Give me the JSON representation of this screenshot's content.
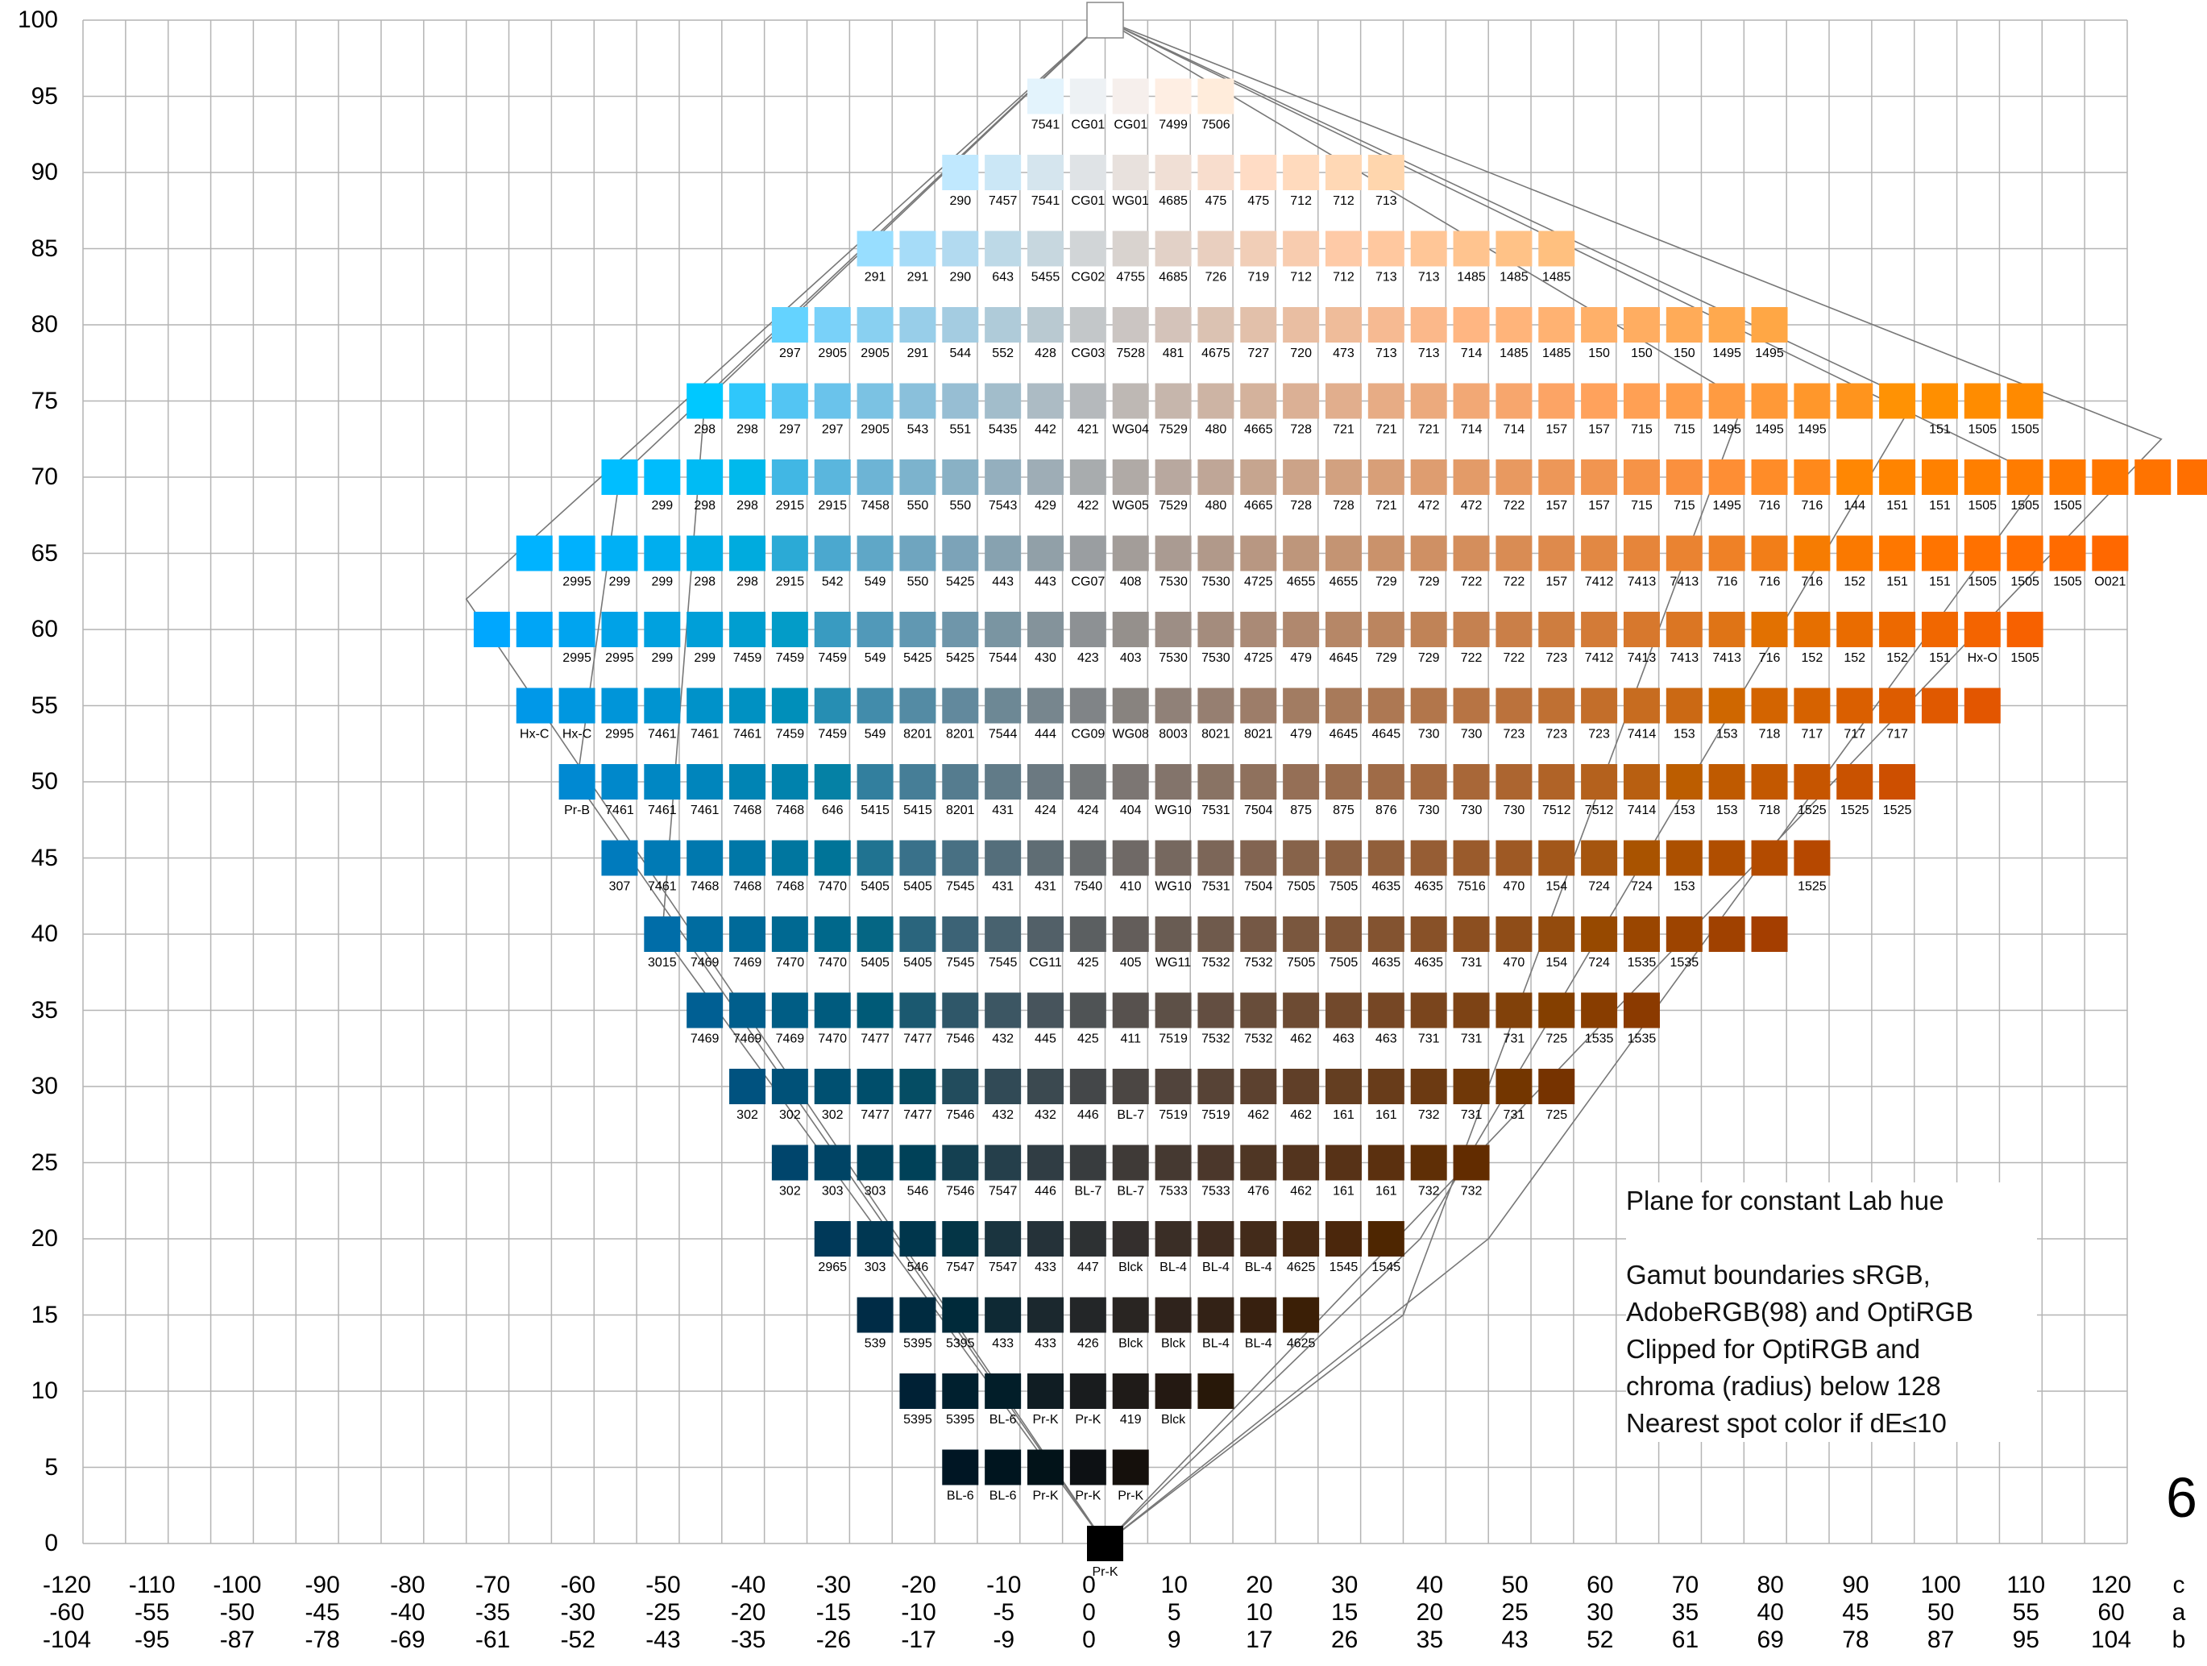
{
  "chart_data": {
    "type": "scatter",
    "description_note": "",
    "y_ticks": [
      0,
      5,
      10,
      15,
      20,
      25,
      30,
      35,
      40,
      45,
      50,
      55,
      60,
      65,
      70,
      75,
      80,
      85,
      90,
      95,
      100
    ],
    "ylim": [
      0,
      100
    ],
    "x_ticks": {
      "c": [
        -120,
        -110,
        -100,
        -90,
        -80,
        -70,
        -60,
        -50,
        -40,
        -30,
        -20,
        -10,
        0,
        10,
        20,
        30,
        40,
        50,
        60,
        70,
        80,
        90,
        100,
        110,
        120
      ],
      "a": [
        -60,
        -55,
        -50,
        -45,
        -40,
        -35,
        -30,
        -25,
        -20,
        -15,
        -10,
        -5,
        0,
        5,
        10,
        15,
        20,
        25,
        30,
        35,
        40,
        45,
        50,
        55,
        60
      ],
      "b": [
        -104,
        -95,
        -87,
        -78,
        -69,
        -61,
        -52,
        -43,
        -35,
        -26,
        -17,
        -9,
        0,
        9,
        17,
        26,
        35,
        43,
        52,
        61,
        69,
        78,
        87,
        95,
        104
      ]
    },
    "axis_names": [
      "c",
      "a",
      "b"
    ],
    "rows": [
      {
        "L": 100,
        "start": 0,
        "labels": [
          ""
        ]
      },
      {
        "L": 95,
        "start": -7,
        "labels": [
          "7541",
          "CG01",
          "CG01",
          "7499",
          "7506"
        ]
      },
      {
        "L": 90,
        "start": -17,
        "labels": [
          "290",
          "7457",
          "7541",
          "CG01",
          "WG01",
          "4685",
          "475",
          "475",
          "712",
          "712",
          "713"
        ]
      },
      {
        "L": 85,
        "start": -27,
        "labels": [
          "291",
          "291",
          "290",
          "643",
          "5455",
          "CG02",
          "4755",
          "4685",
          "726",
          "719",
          "712",
          "712",
          "713",
          "713",
          "1485",
          "1485",
          "1485"
        ]
      },
      {
        "L": 80,
        "start": -37,
        "labels": [
          "297",
          "2905",
          "2905",
          "291",
          "544",
          "552",
          "428",
          "CG03",
          "7528",
          "481",
          "4675",
          "727",
          "720",
          "473",
          "713",
          "713",
          "714",
          "1485",
          "1485",
          "150",
          "150",
          "150",
          "1495",
          "1495"
        ]
      },
      {
        "L": 75,
        "start": -47,
        "labels": [
          "298",
          "298",
          "297",
          "297",
          "2905",
          "543",
          "551",
          "5435",
          "442",
          "421",
          "WG04",
          "7529",
          "480",
          "4665",
          "728",
          "721",
          "721",
          "721",
          "714",
          "714",
          "157",
          "157",
          "715",
          "715",
          "1495",
          "1495",
          "1495",
          "",
          "",
          "151",
          "1505",
          "1505"
        ]
      },
      {
        "L": 70,
        "start": -57,
        "labels": [
          "",
          "299",
          "298",
          "298",
          "2915",
          "2915",
          "7458",
          "550",
          "550",
          "7543",
          "429",
          "422",
          "WG05",
          "7529",
          "480",
          "4665",
          "728",
          "728",
          "721",
          "472",
          "472",
          "722",
          "157",
          "157",
          "715",
          "715",
          "1495",
          "716",
          "716",
          "144",
          "151",
          "151",
          "1505",
          "1505",
          "1505",
          "",
          "",
          ""
        ]
      },
      {
        "L": 65,
        "start": -67,
        "labels": [
          "",
          "2995",
          "299",
          "299",
          "298",
          "298",
          "2915",
          "542",
          "549",
          "550",
          "5425",
          "443",
          "443",
          "CG07",
          "408",
          "7530",
          "7530",
          "4725",
          "4655",
          "4655",
          "729",
          "729",
          "722",
          "722",
          "157",
          "7412",
          "7413",
          "7413",
          "716",
          "716",
          "716",
          "152",
          "151",
          "151",
          "1505",
          "1505",
          "1505",
          "O021"
        ]
      },
      {
        "L": 60,
        "start": -72,
        "labels": [
          "",
          "",
          "2995",
          "2995",
          "299",
          "299",
          "7459",
          "7459",
          "7459",
          "549",
          "5425",
          "5425",
          "7544",
          "430",
          "423",
          "403",
          "7530",
          "7530",
          "4725",
          "479",
          "4645",
          "729",
          "729",
          "722",
          "722",
          "723",
          "7412",
          "7413",
          "7413",
          "7413",
          "716",
          "152",
          "152",
          "152",
          "151",
          "Hx-O",
          "1505"
        ]
      },
      {
        "L": 55,
        "start": -67,
        "labels": [
          "Hx-C",
          "Hx-C",
          "2995",
          "7461",
          "7461",
          "7461",
          "7459",
          "7459",
          "549",
          "8201",
          "8201",
          "7544",
          "444",
          "CG09",
          "WG08",
          "8003",
          "8021",
          "8021",
          "479",
          "4645",
          "4645",
          "730",
          "730",
          "723",
          "723",
          "723",
          "7414",
          "153",
          "153",
          "718",
          "717",
          "717",
          "717",
          "",
          ""
        ]
      },
      {
        "L": 50,
        "start": -62,
        "labels": [
          "Pr-B",
          "7461",
          "7461",
          "7461",
          "7468",
          "7468",
          "646",
          "5415",
          "5415",
          "8201",
          "431",
          "424",
          "424",
          "404",
          "WG10",
          "7531",
          "7504",
          "875",
          "875",
          "876",
          "730",
          "730",
          "730",
          "7512",
          "7512",
          "7414",
          "153",
          "153",
          "718",
          "1525",
          "1525",
          "1525"
        ]
      },
      {
        "L": 45,
        "start": -57,
        "labels": [
          "307",
          "7461",
          "7468",
          "7468",
          "7468",
          "7470",
          "5405",
          "5405",
          "7545",
          "431",
          "431",
          "7540",
          "410",
          "WG10",
          "7531",
          "7504",
          "7505",
          "7505",
          "4635",
          "4635",
          "7516",
          "470",
          "154",
          "724",
          "724",
          "153",
          "",
          "",
          "1525"
        ]
      },
      {
        "L": 40,
        "start": -52,
        "labels": [
          "3015",
          "7469",
          "7469",
          "7470",
          "7470",
          "5405",
          "5405",
          "7545",
          "7545",
          "CG11",
          "425",
          "405",
          "WG11",
          "7532",
          "7532",
          "7505",
          "7505",
          "4635",
          "4635",
          "731",
          "470",
          "154",
          "724",
          "1535",
          "1535",
          "",
          ""
        ]
      },
      {
        "L": 35,
        "start": -47,
        "labels": [
          "7469",
          "7469",
          "7469",
          "7470",
          "7477",
          "7477",
          "7546",
          "432",
          "445",
          "425",
          "411",
          "7519",
          "7532",
          "7532",
          "462",
          "463",
          "463",
          "731",
          "731",
          "731",
          "725",
          "1535",
          "1535"
        ]
      },
      {
        "L": 30,
        "start": -42,
        "labels": [
          "302",
          "302",
          "302",
          "7477",
          "7477",
          "7546",
          "432",
          "432",
          "446",
          "BL-7",
          "7519",
          "7519",
          "462",
          "462",
          "161",
          "161",
          "732",
          "731",
          "731",
          "725"
        ]
      },
      {
        "L": 25,
        "start": -37,
        "labels": [
          "302",
          "303",
          "303",
          "546",
          "7546",
          "7547",
          "446",
          "BL-7",
          "BL-7",
          "7533",
          "7533",
          "476",
          "462",
          "161",
          "161",
          "732",
          "732"
        ]
      },
      {
        "L": 20,
        "start": -32,
        "labels": [
          "2965",
          "303",
          "546",
          "7547",
          "7547",
          "433",
          "447",
          "Blck",
          "BL-4",
          "BL-4",
          "BL-4",
          "4625",
          "1545",
          "1545"
        ]
      },
      {
        "L": 15,
        "start": -27,
        "labels": [
          "539",
          "5395",
          "5395",
          "433",
          "433",
          "426",
          "Blck",
          "Blck",
          "BL-4",
          "BL-4",
          "4625"
        ]
      },
      {
        "L": 10,
        "start": -22,
        "labels": [
          "5395",
          "5395",
          "BL-6",
          "Pr-K",
          "Pr-K",
          "419",
          "Blck",
          ""
        ]
      },
      {
        "L": 5,
        "start": -17,
        "labels": [
          "BL-6",
          "BL-6",
          "Pr-K",
          "Pr-K",
          "Pr-K"
        ]
      },
      {
        "L": 0,
        "start": 0,
        "labels": [
          "Pr-K"
        ]
      }
    ],
    "colors": {
      "warm_hue": "#ff7300",
      "cool_hue": "#00a8ff",
      "grid": "#b4b4b4",
      "boundary": "#777777"
    }
  },
  "note": {
    "line1": "Plane for constant Lab hue",
    "line2": "Gamut boundaries sRGB,",
    "line3": "AdobeRGB(98) and OptiRGB",
    "line4": "Clipped for OptiRGB and",
    "line5": "chroma (radius) below 128",
    "line6": "Nearest spot color if  dE≤10"
  },
  "page_number": "6"
}
